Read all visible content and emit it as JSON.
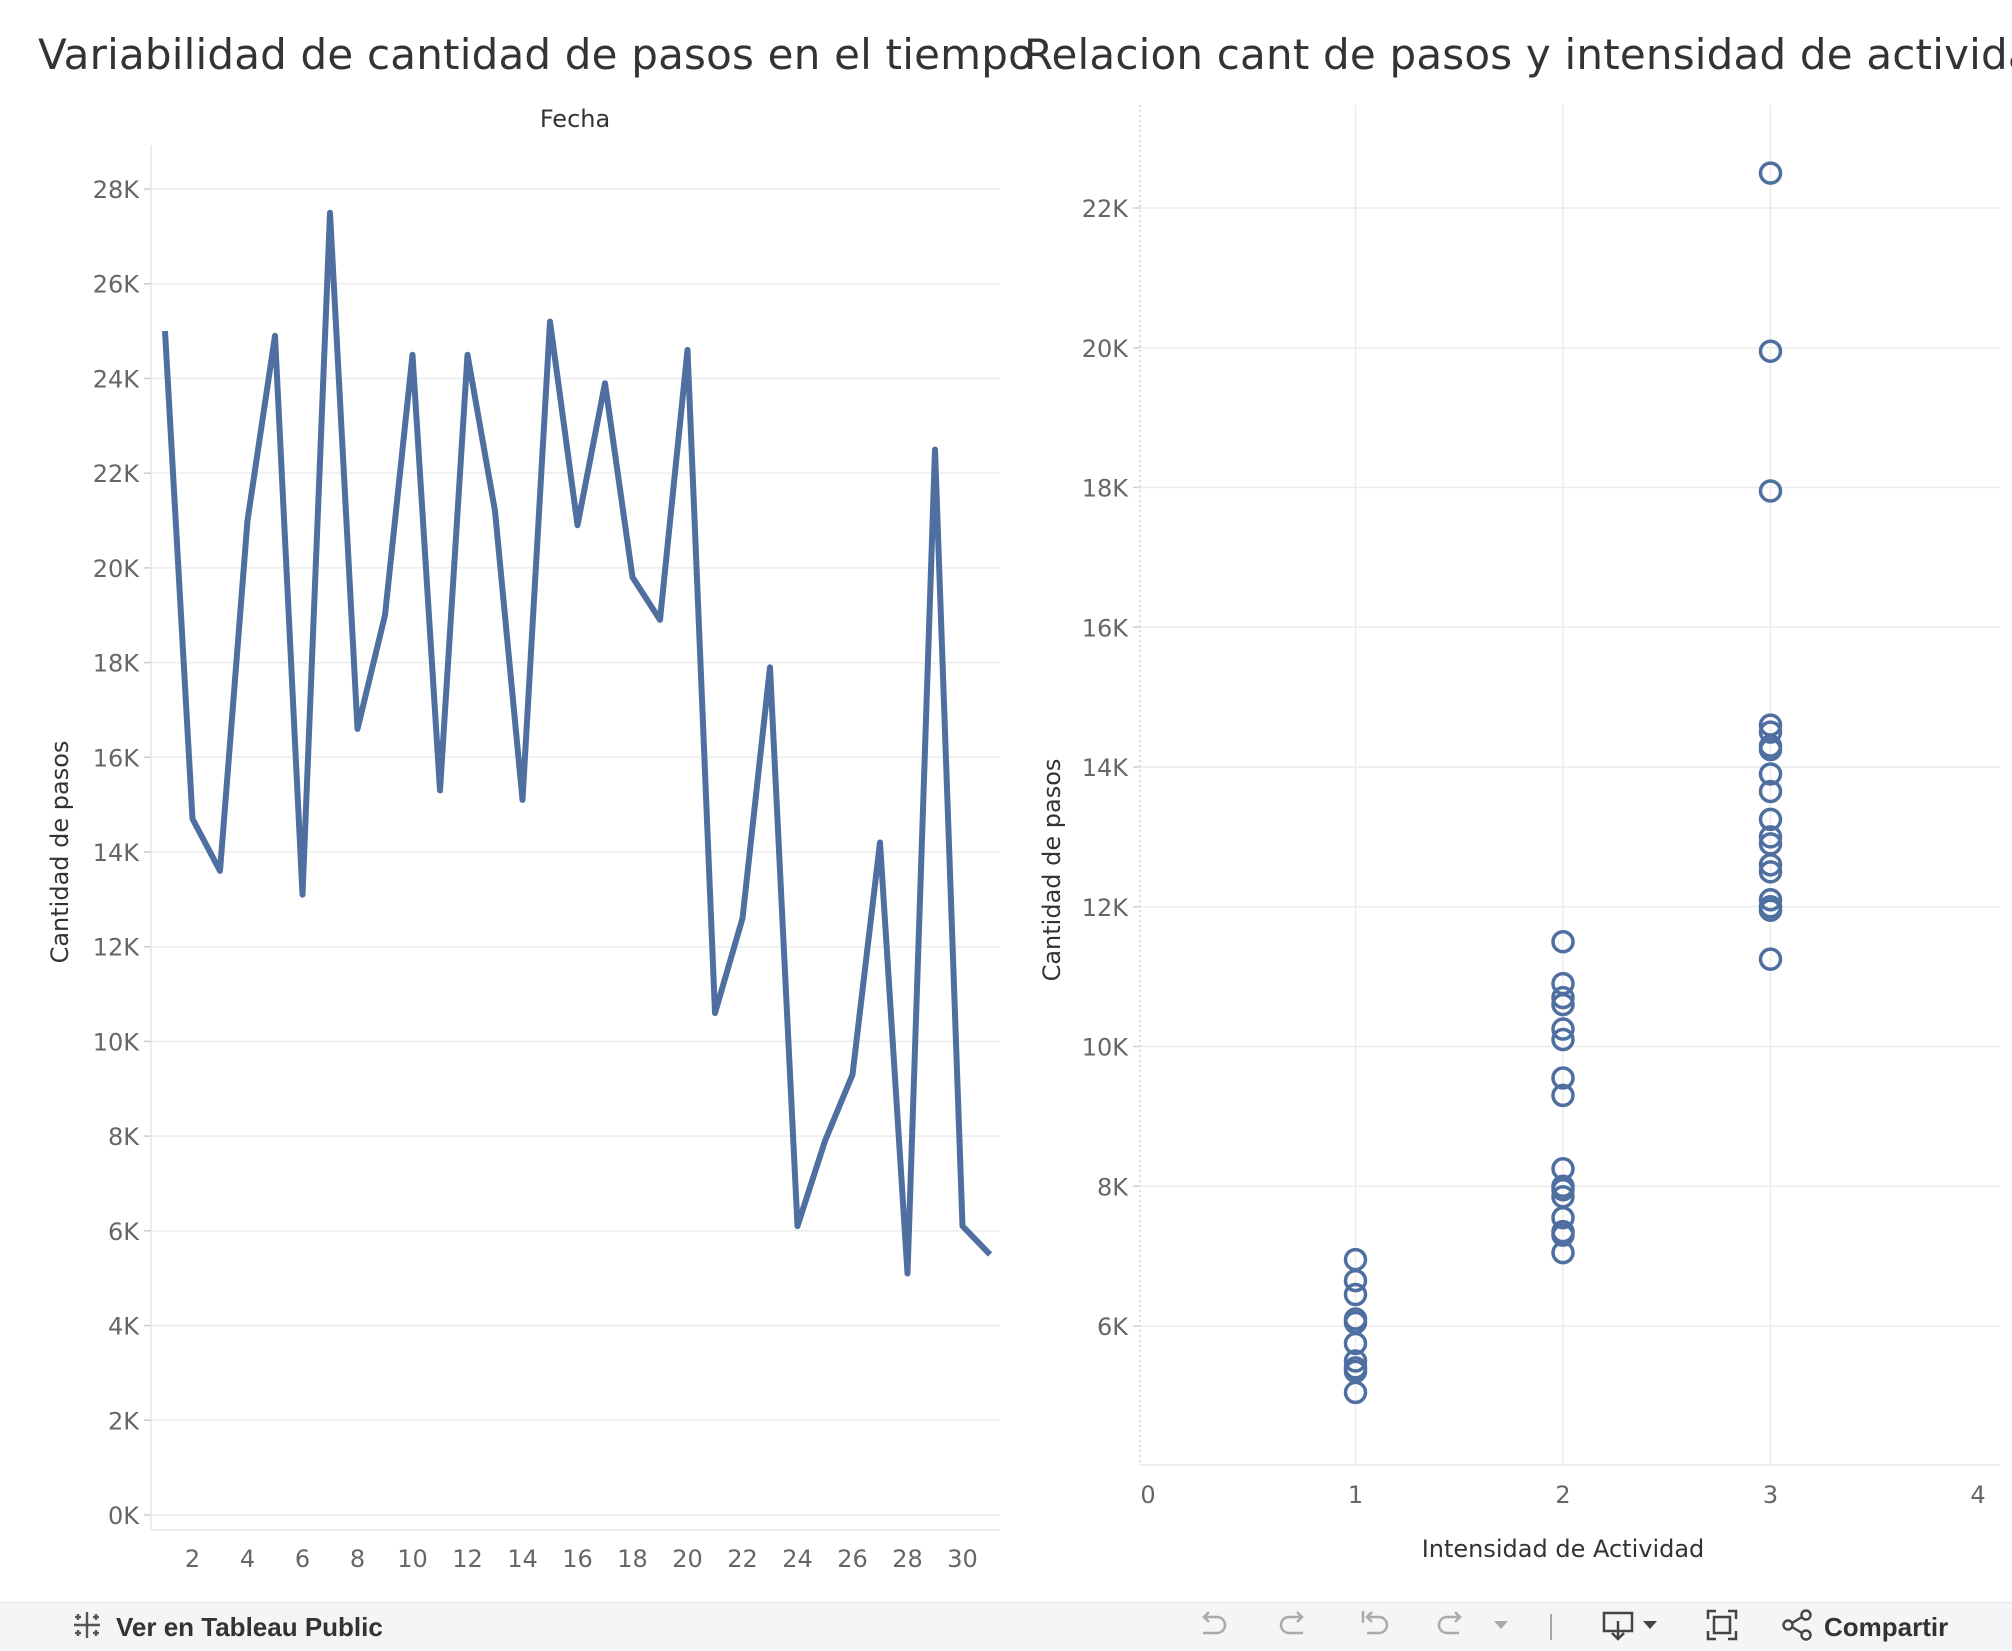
{
  "titles": {
    "left": "Variabilidad de cantidad de pasos en el tiempo",
    "right": "Relacion cant de pasos y intensidad de actividad"
  },
  "toolbar": {
    "view_label": "Ver en Tableau Public",
    "share_label": "Compartir"
  },
  "chart_data": [
    {
      "type": "line",
      "title": "Variabilidad de cantidad de pasos en el tiempo",
      "column_header": "Fecha",
      "xlabel": "",
      "ylabel": "Cantidad de pasos",
      "x": [
        1,
        2,
        3,
        4,
        5,
        6,
        7,
        8,
        9,
        10,
        11,
        12,
        13,
        14,
        15,
        16,
        17,
        18,
        19,
        20,
        21,
        22,
        23,
        24,
        25,
        26,
        27,
        28,
        29,
        30,
        31
      ],
      "x_ticks": [
        "2",
        "4",
        "6",
        "8",
        "10",
        "12",
        "14",
        "16",
        "18",
        "20",
        "22",
        "24",
        "26",
        "28",
        "30"
      ],
      "y_ticks": [
        "0K",
        "2K",
        "4K",
        "6K",
        "8K",
        "10K",
        "12K",
        "14K",
        "16K",
        "18K",
        "20K",
        "22K",
        "24K",
        "26K",
        "28K"
      ],
      "ylim": [
        0,
        28000
      ],
      "series": [
        {
          "values": [
            25000,
            14700,
            13600,
            21000,
            24900,
            13100,
            27500,
            16600,
            19000,
            24500,
            15300,
            24500,
            21200,
            15100,
            25200,
            20900,
            23900,
            19800,
            18900,
            24600,
            10600,
            12600,
            17900,
            6100,
            7900,
            9300,
            14200,
            5100,
            22500,
            6100,
            5500
          ],
          "color": "#4e6f9f"
        }
      ],
      "grid": true
    },
    {
      "type": "scatter",
      "title": "Relacion cant de pasos y intensidad de actividad",
      "xlabel": "Intensidad de Actividad",
      "ylabel": "Cantidad de pasos",
      "x_ticks": [
        "0",
        "1",
        "2",
        "3",
        "4"
      ],
      "y_ticks": [
        "6K",
        "8K",
        "10K",
        "12K",
        "14K",
        "16K",
        "18K",
        "20K",
        "22K"
      ],
      "xlim": [
        0,
        4
      ],
      "ylim": [
        4000,
        23800
      ],
      "marker": "hollow-circle",
      "color": "#4e6f9f",
      "points": [
        {
          "x": 1,
          "y": 6950
        },
        {
          "x": 1,
          "y": 6650
        },
        {
          "x": 1,
          "y": 6450
        },
        {
          "x": 1,
          "y": 6100
        },
        {
          "x": 1,
          "y": 6050
        },
        {
          "x": 1,
          "y": 5750
        },
        {
          "x": 1,
          "y": 5500
        },
        {
          "x": 1,
          "y": 5400
        },
        {
          "x": 1,
          "y": 5350
        },
        {
          "x": 1,
          "y": 5050
        },
        {
          "x": 2,
          "y": 11500
        },
        {
          "x": 2,
          "y": 10900
        },
        {
          "x": 2,
          "y": 10700
        },
        {
          "x": 2,
          "y": 10600
        },
        {
          "x": 2,
          "y": 10250
        },
        {
          "x": 2,
          "y": 10100
        },
        {
          "x": 2,
          "y": 9550
        },
        {
          "x": 2,
          "y": 9300
        },
        {
          "x": 2,
          "y": 8250
        },
        {
          "x": 2,
          "y": 8000
        },
        {
          "x": 2,
          "y": 7950
        },
        {
          "x": 2,
          "y": 7850
        },
        {
          "x": 2,
          "y": 7550
        },
        {
          "x": 2,
          "y": 7350
        },
        {
          "x": 2,
          "y": 7300
        },
        {
          "x": 2,
          "y": 7050
        },
        {
          "x": 3,
          "y": 22500
        },
        {
          "x": 3,
          "y": 19950
        },
        {
          "x": 3,
          "y": 17950
        },
        {
          "x": 3,
          "y": 14600
        },
        {
          "x": 3,
          "y": 14500
        },
        {
          "x": 3,
          "y": 14300
        },
        {
          "x": 3,
          "y": 14250
        },
        {
          "x": 3,
          "y": 13900
        },
        {
          "x": 3,
          "y": 13650
        },
        {
          "x": 3,
          "y": 13250
        },
        {
          "x": 3,
          "y": 13000
        },
        {
          "x": 3,
          "y": 12900
        },
        {
          "x": 3,
          "y": 12600
        },
        {
          "x": 3,
          "y": 12500
        },
        {
          "x": 3,
          "y": 12100
        },
        {
          "x": 3,
          "y": 12000
        },
        {
          "x": 3,
          "y": 11950
        },
        {
          "x": 3,
          "y": 11250
        }
      ],
      "grid": true
    }
  ]
}
